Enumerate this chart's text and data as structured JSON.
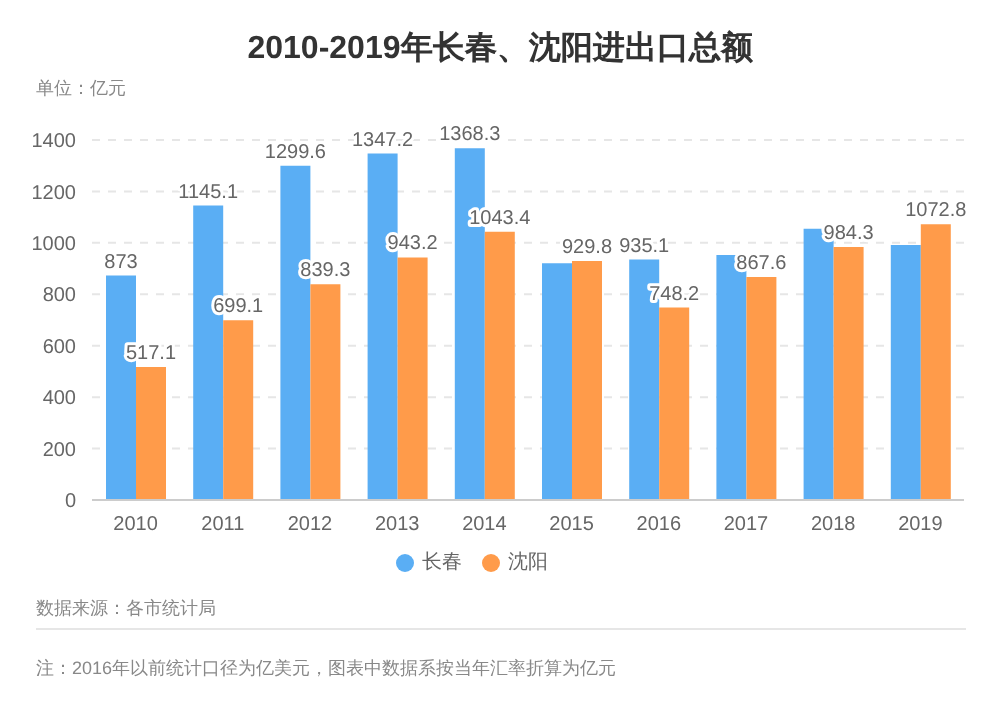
{
  "chart_data": {
    "type": "bar",
    "title": "2010-2019年长春、沈阳进出口总额",
    "ylabel": "单位：亿元",
    "categories": [
      "2010",
      "2011",
      "2012",
      "2013",
      "2014",
      "2015",
      "2016",
      "2017",
      "2018",
      "2019"
    ],
    "series": [
      {
        "name": "长春",
        "color": "#5aaef4",
        "values": [
          873,
          1145.1,
          1299.6,
          1347.2,
          1368.3,
          921,
          935.1,
          953,
          1055,
          992
        ],
        "value_labels": [
          "873",
          "1145.1",
          "1299.6",
          "1347.2",
          "1368.3",
          null,
          "935.1",
          null,
          null,
          null
        ]
      },
      {
        "name": "沈阳",
        "color": "#ff9b4a",
        "values": [
          517.1,
          699.1,
          839.3,
          943.2,
          1043.4,
          929.8,
          748.2,
          867.6,
          984.3,
          1072.8
        ],
        "value_labels": [
          "517.1",
          "699.1",
          "839.3",
          "943.2",
          "1043.4",
          "929.8",
          "748.2",
          "867.6",
          "984.3",
          "1072.8"
        ]
      }
    ],
    "ylim": [
      0,
      1400
    ],
    "yticks": [
      0,
      200,
      400,
      600,
      800,
      1000,
      1200,
      1400
    ],
    "grid": "y",
    "legend": "bottom",
    "annotations": [
      "数据来源：各市统计局",
      "注：2016年以前统计口径为亿美元，图表中数据系按当年汇率折算为亿元"
    ]
  }
}
